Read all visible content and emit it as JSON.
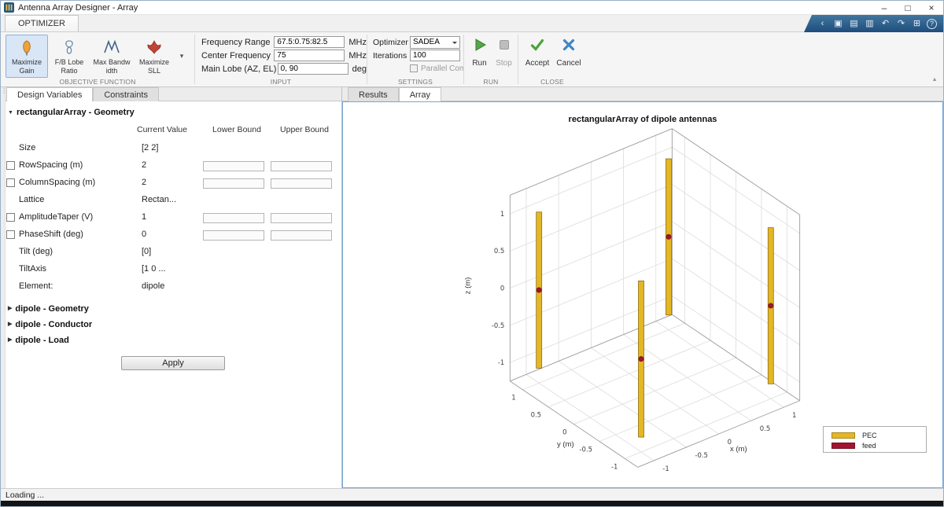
{
  "window": {
    "title": "Antenna Array Designer - Array",
    "controls": {
      "minimize": "–",
      "maximize": "□",
      "close": "×"
    },
    "status": "Loading ..."
  },
  "quick_access": {
    "icons": [
      {
        "name": "collapse-strip-icon",
        "glyph": "‹"
      },
      {
        "name": "save-icon",
        "glyph": "▣"
      },
      {
        "name": "copy-icon",
        "glyph": "▤"
      },
      {
        "name": "paste-icon",
        "glyph": "▥"
      },
      {
        "name": "undo-icon",
        "glyph": "↶"
      },
      {
        "name": "redo-icon",
        "glyph": "↷"
      },
      {
        "name": "layout-icon",
        "glyph": "⊞"
      },
      {
        "name": "help-icon",
        "glyph": "?"
      }
    ]
  },
  "ribbon": {
    "tab_label": "OPTIMIZER",
    "objective": {
      "section_label": "OBJECTIVE FUNCTION",
      "buttons": [
        {
          "line1": "Maximize",
          "line2": "Gain"
        },
        {
          "line1": "F/B Lobe",
          "line2": "Ratio"
        },
        {
          "line1": "Max Bandw",
          "line2": "idth"
        },
        {
          "line1": "Maximize",
          "line2": "SLL"
        }
      ]
    },
    "input": {
      "section_label": "INPUT",
      "fields": [
        {
          "label": "Frequency Range",
          "value": "67.5:0.75:82.5",
          "unit": "MHz"
        },
        {
          "label": "Center Frequency",
          "value": "75",
          "unit": "MHz"
        },
        {
          "label": "Main Lobe (AZ, EL)",
          "value": "0, 90",
          "unit": "deg"
        }
      ]
    },
    "settings": {
      "section_label": "SETTINGS",
      "optimizer_label": "Optimizer",
      "optimizer_value": "SADEA",
      "iterations_label": "Iterations",
      "iterations_value": "100",
      "parallel_label": "Parallel Computing"
    },
    "run": {
      "section_label": "RUN",
      "run": "Run",
      "stop": "Stop"
    },
    "close": {
      "section_label": "CLOSE",
      "accept": "Accept",
      "cancel": "Cancel"
    }
  },
  "left_panel": {
    "tabs": [
      "Design Variables",
      "Constraints"
    ],
    "geometry_section": "rectangularArray - Geometry",
    "columns": {
      "current": "Current Value",
      "lower": "Lower Bound",
      "upper": "Upper Bound"
    },
    "rows": [
      {
        "label": "Size",
        "value": "[2  2]"
      },
      {
        "label": "RowSpacing (m)",
        "value": "2"
      },
      {
        "label": "ColumnSpacing (m)",
        "value": "2"
      },
      {
        "label": "Lattice",
        "value": "Rectan..."
      },
      {
        "label": "AmplitudeTaper (V)",
        "value": "1"
      },
      {
        "label": "PhaseShift (deg)",
        "value": "0"
      },
      {
        "label": "Tilt (deg)",
        "value": "[0]"
      },
      {
        "label": "TiltAxis",
        "value": "[1  0 ..."
      },
      {
        "label": "Element:",
        "value": "dipole"
      }
    ],
    "collapsed_sections": [
      "dipole - Geometry",
      "dipole - Conductor",
      "dipole - Load"
    ],
    "apply_label": "Apply"
  },
  "right_panel": {
    "tabs": [
      "Results",
      "Array"
    ]
  },
  "chart_data": {
    "type": "3d-antenna-geometry",
    "title": "rectangularArray of dipole antennas",
    "xlabel": "x (m)",
    "ylabel": "y (m)",
    "zlabel": "z (m)",
    "axis_limit": 1.25,
    "ticks": [
      -1,
      -0.5,
      0,
      0.5,
      1
    ],
    "dipoles": [
      {
        "x": 1,
        "y": 1
      },
      {
        "x": -1,
        "y": 1
      },
      {
        "x": 1,
        "y": -1
      },
      {
        "x": -1,
        "y": -1
      }
    ],
    "dipole_half_length_m": 1.05,
    "colors": {
      "pec": "#e3b725",
      "feed": "#a2142f"
    },
    "legend": [
      {
        "key": "pec",
        "label": "PEC"
      },
      {
        "key": "feed",
        "label": "feed"
      }
    ]
  }
}
